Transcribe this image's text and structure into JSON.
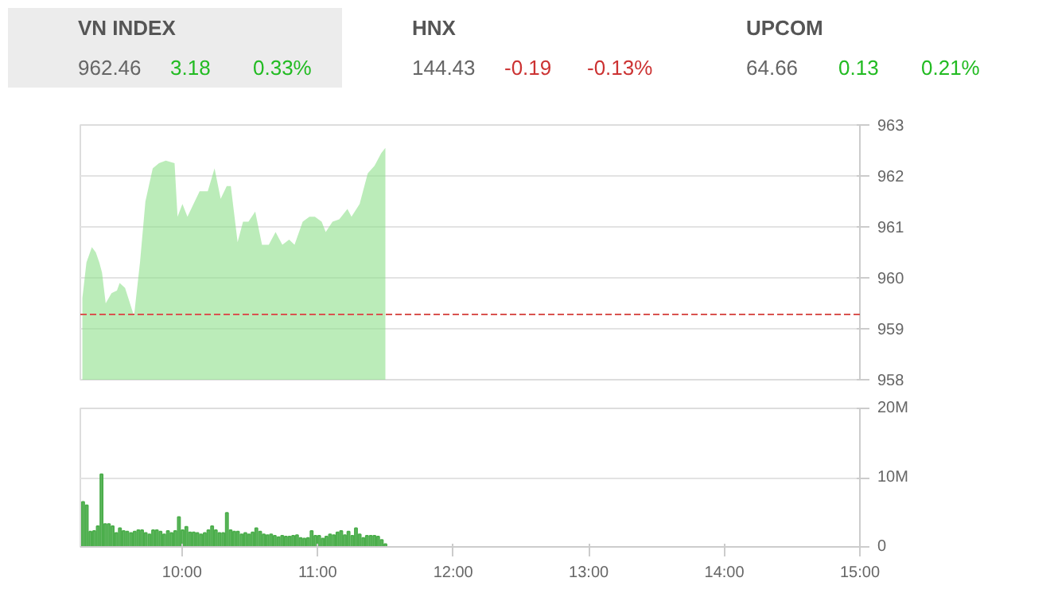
{
  "chart_data": [
    {
      "type": "other",
      "annotations": [
        "VN INDEX",
        "962.46",
        "3.18",
        "0.33%",
        "HNX",
        "144.43",
        "-0.19",
        "-0.13%",
        "UPCOM",
        "64.66",
        "0.13",
        "0.21%"
      ],
      "colors": [
        "#555555",
        "#666666",
        "#22bb22",
        "#22bb22",
        "#555555",
        "#666666",
        "#cc3333",
        "#cc3333",
        "#555555",
        "#666666",
        "#22bb22",
        "#22bb22"
      ]
    },
    {
      "type": "area",
      "tick_labels": "y",
      "grid": "y",
      "xlim": [
        9.25,
        15
      ],
      "ylim": [
        958,
        963
      ],
      "yticks": [
        958,
        959,
        960,
        961,
        962,
        963
      ],
      "ref_lines": [
        {
          "axis": "y",
          "value": 959.28,
          "color": "#d9534f",
          "line_style": "dashed"
        }
      ],
      "series": [
        {
          "color": "#8ee08a",
          "x": [
            9.265,
            9.295,
            9.335,
            9.364,
            9.39,
            9.41,
            9.437,
            9.48,
            9.52,
            9.54,
            9.58,
            9.646,
            9.69,
            9.73,
            9.784,
            9.83,
            9.88,
            9.945,
            9.967,
            10.003,
            10.04,
            10.13,
            10.19,
            10.24,
            10.285,
            10.33,
            10.36,
            10.41,
            10.45,
            10.49,
            10.54,
            10.59,
            10.64,
            10.69,
            10.74,
            10.79,
            10.83,
            10.89,
            10.94,
            10.98,
            11.03,
            11.06,
            11.11,
            11.16,
            11.22,
            11.25,
            11.31,
            11.37,
            11.42,
            11.47,
            11.5
          ],
          "values": [
            959.6,
            960.3,
            960.6,
            960.5,
            960.3,
            960.1,
            959.5,
            959.7,
            959.75,
            959.9,
            959.8,
            959.25,
            960.3,
            961.5,
            962.15,
            962.25,
            962.3,
            962.25,
            961.2,
            961.45,
            961.2,
            961.7,
            961.7,
            962.15,
            961.55,
            961.8,
            961.8,
            960.7,
            961.1,
            961.1,
            961.3,
            960.65,
            960.65,
            960.9,
            960.65,
            960.75,
            960.65,
            961.1,
            961.2,
            961.2,
            961.1,
            960.9,
            961.1,
            961.15,
            961.35,
            961.2,
            961.45,
            962.05,
            962.2,
            962.45,
            962.55
          ]
        }
      ]
    },
    {
      "type": "bar",
      "grid": "y",
      "xlim": [
        9.25,
        15
      ],
      "ylim": [
        0,
        20
      ],
      "xticks": [
        {
          "value": 10,
          "label": "10:00"
        },
        {
          "value": 11,
          "label": "11:00"
        },
        {
          "value": 12,
          "label": "12:00"
        },
        {
          "value": 13,
          "label": "13:00"
        },
        {
          "value": 14,
          "label": "14:00"
        },
        {
          "value": 15,
          "label": "15:00"
        }
      ],
      "yticks": [
        0,
        {
          "value": 10,
          "label": "10M"
        },
        {
          "value": 20,
          "label": "20M"
        }
      ],
      "x": [
        9.27,
        9.297,
        9.324,
        9.352,
        9.379,
        9.406,
        9.433,
        9.46,
        9.488,
        9.515,
        9.542,
        9.569,
        9.596,
        9.624,
        9.651,
        9.678,
        9.705,
        9.732,
        9.76,
        9.787,
        9.814,
        9.841,
        9.868,
        9.896,
        9.923,
        9.95,
        9.977,
        10.004,
        10.032,
        10.059,
        10.086,
        10.113,
        10.14,
        10.168,
        10.195,
        10.222,
        10.249,
        10.276,
        10.304,
        10.331,
        10.358,
        10.385,
        10.412,
        10.44,
        10.467,
        10.494,
        10.521,
        10.548,
        10.576,
        10.603,
        10.63,
        10.657,
        10.684,
        10.712,
        10.739,
        10.766,
        10.793,
        10.82,
        10.848,
        10.875,
        10.902,
        10.929,
        10.956,
        10.984,
        11.011,
        11.038,
        11.065,
        11.092,
        11.12,
        11.147,
        11.174,
        11.201,
        11.228,
        11.256,
        11.283,
        11.31,
        11.337,
        11.364,
        11.392,
        11.419,
        11.446,
        11.473,
        11.5
      ],
      "series": [
        {
          "color": "#4cae4c",
          "values": [
            6.5,
            6.0,
            2.2,
            2.3,
            3.0,
            10.5,
            3.3,
            3.3,
            3.0,
            2.0,
            2.7,
            2.3,
            2.2,
            2.0,
            2.2,
            2.4,
            2.4,
            2.0,
            1.8,
            2.4,
            2.4,
            2.2,
            1.8,
            2.3,
            2.0,
            2.3,
            4.3,
            2.4,
            2.9,
            2.1,
            2.1,
            2.0,
            1.8,
            2.0,
            2.4,
            3.0,
            2.4,
            2.0,
            2.0,
            4.9,
            2.4,
            2.2,
            2.2,
            1.8,
            2.0,
            1.8,
            2.1,
            2.7,
            2.2,
            1.8,
            1.7,
            1.8,
            1.6,
            1.4,
            1.6,
            1.5,
            1.5,
            1.6,
            1.7,
            1.3,
            1.2,
            1.3,
            2.3,
            1.6,
            1.6,
            1.2,
            1.5,
            1.8,
            1.7,
            2.1,
            2.3,
            1.7,
            2.2,
            1.6,
            2.7,
            1.8,
            1.3,
            1.6,
            1.6,
            1.6,
            1.5,
            1.0,
            0.4
          ]
        }
      ]
    }
  ]
}
